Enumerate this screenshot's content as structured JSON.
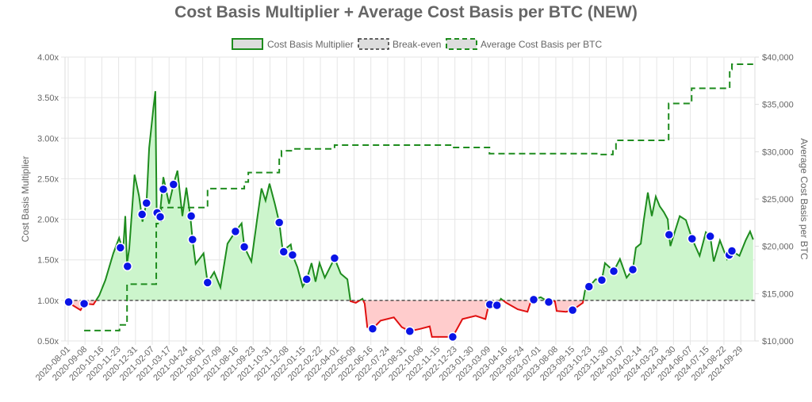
{
  "chart_data": {
    "type": "line",
    "title": "Cost Basis Multiplier + Average Cost Basis per BTC (NEW)",
    "legend": {
      "placement": "top",
      "entries": [
        "Cost Basis Multiplier",
        "Break-even",
        "Average Cost Basis per BTC"
      ]
    },
    "y_left": {
      "label": "Cost Basis Multiplier",
      "range": [
        0.5,
        4.0
      ],
      "ticks": [
        "0.50x",
        "1.00x",
        "1.50x",
        "2.00x",
        "2.50x",
        "3.00x",
        "3.50x",
        "4.00x"
      ],
      "grid": true
    },
    "y_right": {
      "label": "Average Cost Basis per BTC",
      "range": [
        10000,
        40000
      ],
      "ticks": [
        "$10,000",
        "$15,000",
        "$20,000",
        "$25,000",
        "$30,000",
        "$35,000",
        "$40,000"
      ]
    },
    "x_ticks": [
      "2020-08-01",
      "2020-09-08",
      "2020-10-16",
      "2020-11-23",
      "2020-12-31",
      "2021-02-07",
      "2021-03-17",
      "2021-04-24",
      "2021-06-01",
      "2021-07-09",
      "2021-08-16",
      "2021-09-23",
      "2021-10-31",
      "2021-12-08",
      "2022-01-15",
      "2022-02-22",
      "2022-04-01",
      "2022-05-09",
      "2022-06-16",
      "2022-07-24",
      "2022-08-31",
      "2022-10-08",
      "2022-11-15",
      "2022-12-23",
      "2023-01-30",
      "2023-03-09",
      "2023-04-16",
      "2023-05-24",
      "2023-07-01",
      "2023-08-08",
      "2023-09-15",
      "2023-10-23",
      "2023-11-30",
      "2024-01-07",
      "2024-02-14",
      "2024-03-23",
      "2024-04-30",
      "2024-06-07",
      "2024-07-15",
      "2024-08-22",
      "2024-09-29"
    ],
    "colors": {
      "above": "#1e8c1e",
      "above_fill": "#ccf5cc",
      "below": "#e01010",
      "below_fill": "#ffcccc",
      "breakeven": "#333333",
      "avg_cost": "#1e8c1e",
      "events": "#0a14e6"
    },
    "breakeven": 1.0,
    "multiplier": [
      [
        "2020-08-02",
        0.97
      ],
      [
        "2020-08-29",
        0.88
      ],
      [
        "2020-09-06",
        0.96
      ],
      [
        "2020-09-27",
        0.95
      ],
      [
        "2020-10-10",
        1.06
      ],
      [
        "2020-10-24",
        1.25
      ],
      [
        "2020-11-11",
        1.58
      ],
      [
        "2020-11-24",
        1.77
      ],
      [
        "2020-12-03",
        1.61
      ],
      [
        "2020-12-08",
        2.04
      ],
      [
        "2020-12-12",
        1.45
      ],
      [
        "2020-12-17",
        1.64
      ],
      [
        "2020-12-29",
        2.55
      ],
      [
        "2021-01-08",
        2.29
      ],
      [
        "2021-01-16",
        1.97
      ],
      [
        "2021-01-25",
        2.21
      ],
      [
        "2021-01-31",
        2.88
      ],
      [
        "2021-02-09",
        3.34
      ],
      [
        "2021-02-14",
        3.58
      ],
      [
        "2021-02-17",
        2.09
      ],
      [
        "2021-02-24",
        2.04
      ],
      [
        "2021-03-04",
        2.52
      ],
      [
        "2021-03-17",
        2.19
      ],
      [
        "2021-03-27",
        2.43
      ],
      [
        "2021-04-05",
        2.6
      ],
      [
        "2021-04-16",
        2.04
      ],
      [
        "2021-04-25",
        2.39
      ],
      [
        "2021-05-04",
        2.04
      ],
      [
        "2021-05-09",
        1.75
      ],
      [
        "2021-05-16",
        1.45
      ],
      [
        "2021-06-03",
        1.58
      ],
      [
        "2021-06-12",
        1.22
      ],
      [
        "2021-06-27",
        1.35
      ],
      [
        "2021-07-11",
        1.16
      ],
      [
        "2021-07-27",
        1.7
      ],
      [
        "2021-08-14",
        1.85
      ],
      [
        "2021-08-28",
        1.95
      ],
      [
        "2021-09-03",
        1.66
      ],
      [
        "2021-09-19",
        1.48
      ],
      [
        "2021-10-03",
        2.04
      ],
      [
        "2021-10-12",
        2.38
      ],
      [
        "2021-10-21",
        2.23
      ],
      [
        "2021-10-30",
        2.44
      ],
      [
        "2021-11-11",
        2.19
      ],
      [
        "2021-11-21",
        1.96
      ],
      [
        "2021-11-29",
        1.61
      ],
      [
        "2021-12-17",
        1.69
      ],
      [
        "2021-12-21",
        1.56
      ],
      [
        "2022-01-01",
        1.41
      ],
      [
        "2022-01-13",
        1.17
      ],
      [
        "2022-01-22",
        1.26
      ],
      [
        "2022-02-02",
        1.46
      ],
      [
        "2022-02-11",
        1.23
      ],
      [
        "2022-02-20",
        1.46
      ],
      [
        "2022-03-04",
        1.28
      ],
      [
        "2022-03-26",
        1.52
      ],
      [
        "2022-04-09",
        1.33
      ],
      [
        "2022-04-24",
        1.26
      ],
      [
        "2022-05-01",
        0.99
      ],
      [
        "2022-05-13",
        0.97
      ],
      [
        "2022-05-28",
        1.02
      ],
      [
        "2022-06-02",
        0.96
      ],
      [
        "2022-06-08",
        0.67
      ],
      [
        "2022-06-20",
        0.65
      ],
      [
        "2022-07-08",
        0.75
      ],
      [
        "2022-08-07",
        0.79
      ],
      [
        "2022-08-25",
        0.67
      ],
      [
        "2022-09-12",
        0.62
      ],
      [
        "2022-10-06",
        0.65
      ],
      [
        "2022-10-27",
        0.68
      ],
      [
        "2022-11-01",
        0.55
      ],
      [
        "2022-11-28",
        0.55
      ],
      [
        "2022-12-18",
        0.55
      ],
      [
        "2023-01-09",
        0.77
      ],
      [
        "2023-02-08",
        0.81
      ],
      [
        "2023-03-02",
        0.77
      ],
      [
        "2023-03-07",
        0.89
      ],
      [
        "2023-03-12",
        0.95
      ],
      [
        "2023-03-28",
        0.94
      ],
      [
        "2023-04-06",
        1.02
      ],
      [
        "2023-04-18",
        0.97
      ],
      [
        "2023-05-14",
        0.89
      ],
      [
        "2023-06-05",
        0.86
      ],
      [
        "2023-06-14",
        1.01
      ],
      [
        "2023-06-19",
        1.01
      ],
      [
        "2023-07-05",
        1.04
      ],
      [
        "2023-07-23",
        0.98
      ],
      [
        "2023-08-06",
        0.99
      ],
      [
        "2023-08-10",
        0.87
      ],
      [
        "2023-08-31",
        0.86
      ],
      [
        "2023-09-15",
        0.88
      ],
      [
        "2023-10-08",
        0.97
      ],
      [
        "2023-10-13",
        1.12
      ],
      [
        "2023-10-22",
        1.17
      ],
      [
        "2023-11-06",
        1.26
      ],
      [
        "2023-11-20",
        1.25
      ],
      [
        "2023-11-27",
        1.46
      ],
      [
        "2023-12-17",
        1.36
      ],
      [
        "2023-12-31",
        1.51
      ],
      [
        "2024-01-15",
        1.28
      ],
      [
        "2024-01-29",
        1.38
      ],
      [
        "2024-02-05",
        1.65
      ],
      [
        "2024-02-16",
        1.7
      ],
      [
        "2024-02-23",
        2.0
      ],
      [
        "2024-03-03",
        2.33
      ],
      [
        "2024-03-12",
        2.04
      ],
      [
        "2024-03-21",
        2.28
      ],
      [
        "2024-03-30",
        2.16
      ],
      [
        "2024-04-08",
        2.09
      ],
      [
        "2024-04-17",
        2.0
      ],
      [
        "2024-04-20",
        1.81
      ],
      [
        "2024-04-23",
        1.67
      ],
      [
        "2024-05-14",
        2.04
      ],
      [
        "2024-05-28",
        1.99
      ],
      [
        "2024-06-11",
        1.76
      ],
      [
        "2024-06-28",
        1.55
      ],
      [
        "2024-07-12",
        1.84
      ],
      [
        "2024-07-22",
        1.79
      ],
      [
        "2024-07-30",
        1.48
      ],
      [
        "2024-08-13",
        1.74
      ],
      [
        "2024-08-29",
        1.51
      ],
      [
        "2024-09-03",
        1.56
      ],
      [
        "2024-09-09",
        1.61
      ],
      [
        "2024-09-26",
        1.55
      ],
      [
        "2024-10-10",
        1.74
      ],
      [
        "2024-10-20",
        1.85
      ],
      [
        "2024-10-27",
        1.75
      ]
    ],
    "event_points": [
      [
        "2020-08-02",
        0.98
      ],
      [
        "2020-09-06",
        0.96
      ],
      [
        "2020-11-27",
        1.65
      ],
      [
        "2020-12-13",
        1.42
      ],
      [
        "2021-01-15",
        2.06
      ],
      [
        "2021-01-25",
        2.2
      ],
      [
        "2021-02-18",
        2.08
      ],
      [
        "2021-02-25",
        2.03
      ],
      [
        "2021-03-04",
        2.37
      ],
      [
        "2021-03-27",
        2.43
      ],
      [
        "2021-05-06",
        2.04
      ],
      [
        "2021-05-09",
        1.75
      ],
      [
        "2021-06-12",
        1.22
      ],
      [
        "2021-08-14",
        1.85
      ],
      [
        "2021-09-03",
        1.66
      ],
      [
        "2021-11-21",
        1.96
      ],
      [
        "2021-12-01",
        1.6
      ],
      [
        "2021-12-21",
        1.56
      ],
      [
        "2022-01-22",
        1.26
      ],
      [
        "2022-03-26",
        1.52
      ],
      [
        "2022-06-20",
        0.65
      ],
      [
        "2022-09-12",
        0.62
      ],
      [
        "2022-12-18",
        0.55
      ],
      [
        "2023-03-12",
        0.95
      ],
      [
        "2023-03-28",
        0.94
      ],
      [
        "2023-06-19",
        1.01
      ],
      [
        "2023-07-23",
        0.98
      ],
      [
        "2023-09-15",
        0.88
      ],
      [
        "2023-10-22",
        1.17
      ],
      [
        "2023-11-20",
        1.25
      ],
      [
        "2023-12-17",
        1.36
      ],
      [
        "2024-01-29",
        1.38
      ],
      [
        "2024-04-20",
        1.81
      ],
      [
        "2024-06-11",
        1.76
      ],
      [
        "2024-07-22",
        1.79
      ],
      [
        "2024-09-03",
        1.56
      ],
      [
        "2024-09-09",
        1.61
      ]
    ],
    "avg_cost_basis": [
      [
        "2020-09-06",
        11100
      ],
      [
        "2020-11-25",
        11700
      ],
      [
        "2020-12-12",
        16000
      ],
      [
        "2021-02-16",
        22400
      ],
      [
        "2021-02-27",
        24100
      ],
      [
        "2021-06-12",
        26100
      ],
      [
        "2021-09-03",
        26800
      ],
      [
        "2021-09-12",
        27800
      ],
      [
        "2021-11-21",
        29500
      ],
      [
        "2021-11-26",
        30100
      ],
      [
        "2021-12-23",
        30300
      ],
      [
        "2022-03-26",
        30700
      ],
      [
        "2022-12-16",
        30450
      ],
      [
        "2023-03-11",
        29800
      ],
      [
        "2023-11-16",
        29700
      ],
      [
        "2023-12-15",
        30300
      ],
      [
        "2023-12-22",
        31200
      ],
      [
        "2024-04-19",
        35100
      ],
      [
        "2024-06-10",
        36700
      ],
      [
        "2024-09-04",
        38700
      ],
      [
        "2024-09-09",
        39250
      ],
      [
        "2024-10-27",
        39250
      ]
    ]
  }
}
